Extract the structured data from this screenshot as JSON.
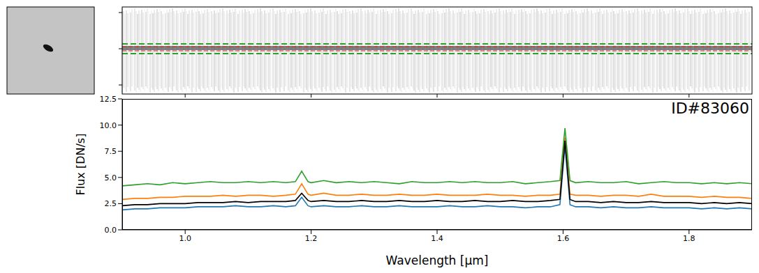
{
  "chart_data": {
    "type": "line",
    "annotation": "ID#83060",
    "x_label": "Wavelength [μm]",
    "y_label": "Flux [DN/s]",
    "x": [
      0.9,
      0.92,
      0.94,
      0.96,
      0.98,
      1.0,
      1.02,
      1.04,
      1.06,
      1.08,
      1.1,
      1.12,
      1.14,
      1.16,
      1.175,
      1.185,
      1.195,
      1.2,
      1.22,
      1.24,
      1.26,
      1.28,
      1.3,
      1.32,
      1.34,
      1.36,
      1.38,
      1.4,
      1.42,
      1.44,
      1.46,
      1.48,
      1.5,
      1.52,
      1.54,
      1.56,
      1.58,
      1.595,
      1.603,
      1.611,
      1.62,
      1.64,
      1.66,
      1.68,
      1.7,
      1.72,
      1.74,
      1.76,
      1.78,
      1.8,
      1.82,
      1.84,
      1.86,
      1.88,
      1.9
    ],
    "series": [
      {
        "color": "#1f77b4",
        "values": [
          1.9,
          2.0,
          2.0,
          2.1,
          2.1,
          2.1,
          2.2,
          2.2,
          2.2,
          2.3,
          2.2,
          2.2,
          2.3,
          2.2,
          2.3,
          3.1,
          2.3,
          2.2,
          2.3,
          2.2,
          2.2,
          2.3,
          2.2,
          2.2,
          2.3,
          2.2,
          2.2,
          2.2,
          2.3,
          2.2,
          2.2,
          2.3,
          2.2,
          2.2,
          2.1,
          2.2,
          2.2,
          2.4,
          8.0,
          2.4,
          2.2,
          2.2,
          2.1,
          2.2,
          2.1,
          2.1,
          2.2,
          2.1,
          2.1,
          2.1,
          2.0,
          2.1,
          2.0,
          2.1,
          2.0
        ]
      },
      {
        "color": "#ff7f0e",
        "values": [
          2.9,
          3.0,
          3.0,
          3.1,
          3.1,
          3.2,
          3.2,
          3.2,
          3.3,
          3.2,
          3.3,
          3.3,
          3.2,
          3.3,
          3.4,
          4.4,
          3.4,
          3.3,
          3.5,
          3.3,
          3.3,
          3.4,
          3.3,
          3.3,
          3.4,
          3.3,
          3.3,
          3.4,
          3.3,
          3.3,
          3.3,
          3.4,
          3.3,
          3.3,
          3.2,
          3.3,
          3.3,
          3.4,
          8.8,
          3.4,
          3.3,
          3.3,
          3.2,
          3.3,
          3.3,
          3.2,
          3.4,
          3.2,
          3.2,
          3.2,
          3.1,
          3.2,
          3.1,
          3.1,
          3.0
        ]
      },
      {
        "color": "#2ca02c",
        "values": [
          4.2,
          4.3,
          4.4,
          4.3,
          4.5,
          4.4,
          4.5,
          4.6,
          4.5,
          4.5,
          4.6,
          4.5,
          4.6,
          4.5,
          4.6,
          5.6,
          4.6,
          4.5,
          4.7,
          4.5,
          4.6,
          4.5,
          4.6,
          4.5,
          4.4,
          4.6,
          4.5,
          4.5,
          4.6,
          4.5,
          4.6,
          4.5,
          4.5,
          4.6,
          4.4,
          4.5,
          4.6,
          4.7,
          9.7,
          4.7,
          4.5,
          4.6,
          4.5,
          4.5,
          4.6,
          4.4,
          4.5,
          4.6,
          4.5,
          4.5,
          4.4,
          4.5,
          4.4,
          4.5,
          4.4
        ]
      },
      {
        "color": "#000000",
        "values": [
          2.3,
          2.4,
          2.4,
          2.5,
          2.5,
          2.5,
          2.6,
          2.6,
          2.6,
          2.7,
          2.6,
          2.7,
          2.7,
          2.7,
          2.8,
          3.5,
          2.8,
          2.7,
          2.8,
          2.7,
          2.7,
          2.8,
          2.7,
          2.7,
          2.8,
          2.7,
          2.7,
          2.8,
          2.7,
          2.7,
          2.8,
          2.7,
          2.7,
          2.8,
          2.7,
          2.7,
          2.8,
          2.9,
          8.5,
          2.9,
          2.7,
          2.7,
          2.6,
          2.7,
          2.6,
          2.6,
          2.7,
          2.6,
          2.6,
          2.6,
          2.5,
          2.6,
          2.5,
          2.6,
          2.5
        ]
      }
    ],
    "xlim": [
      0.9,
      1.9
    ],
    "xticks": [
      {
        "value": 1.0,
        "label": "1.0"
      },
      1.2,
      1.4,
      1.6,
      1.8
    ],
    "ylim": [
      0,
      12.5
    ],
    "yticks": [
      {
        "value": 0,
        "label": "0.0"
      },
      2.5,
      {
        "value": 5,
        "label": "5.0"
      },
      7.5,
      {
        "value": 10,
        "label": "10.0"
      },
      12.5
    ],
    "grid": false
  }
}
